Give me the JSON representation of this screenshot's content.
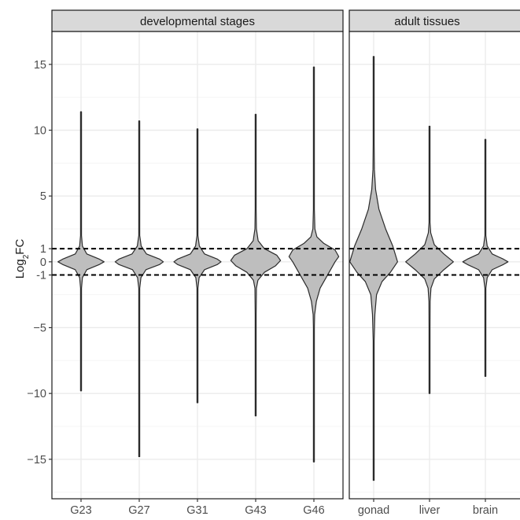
{
  "chart_data": {
    "type": "violin",
    "ylabel_main": "Log",
    "ylabel_sub": "2",
    "ylabel_tail": "FC",
    "y_ticks": [
      {
        "value": 15,
        "label": "15"
      },
      {
        "value": 10,
        "label": "10"
      },
      {
        "value": 5,
        "label": "5"
      },
      {
        "value": 1,
        "label": "1"
      },
      {
        "value": 0,
        "label": "0"
      },
      {
        "value": -1,
        "label": "-1"
      },
      {
        "value": -5,
        "label": "−5"
      },
      {
        "value": -10,
        "label": "−10"
      },
      {
        "value": -15,
        "label": "−15"
      }
    ],
    "ylim": [
      -18,
      17.5
    ],
    "hlines": [
      1,
      -1
    ],
    "grid": true,
    "colors": {
      "violin_fill": "#bebebe",
      "violin_stroke": "#2b2b2b",
      "strip_fill": "#d9d9d9",
      "panel_border": "#1a1a1a",
      "grid_major": "#ebebeb",
      "grid_minor": "#f5f5f5",
      "text": "#4d4d4d"
    },
    "panels": [
      {
        "strip": "developmental stages",
        "categories": [
          {
            "label": "G23",
            "min": -9.8,
            "max": 11.4,
            "width_profile": [
              [
                -9.8,
                0.004
              ],
              [
                -4,
                0.006
              ],
              [
                -2,
                0.02
              ],
              [
                -1.2,
                0.06
              ],
              [
                -0.6,
                0.25
              ],
              [
                -0.2,
                0.8
              ],
              [
                0,
                1.0
              ],
              [
                0.2,
                0.8
              ],
              [
                0.6,
                0.25
              ],
              [
                1.2,
                0.06
              ],
              [
                2,
                0.02
              ],
              [
                4,
                0.006
              ],
              [
                11.4,
                0.004
              ]
            ],
            "scale": 0.88
          },
          {
            "label": "G27",
            "min": -14.8,
            "max": 10.7,
            "width_profile": [
              [
                -14.8,
                0.004
              ],
              [
                -4,
                0.006
              ],
              [
                -2,
                0.02
              ],
              [
                -1.2,
                0.07
              ],
              [
                -0.6,
                0.28
              ],
              [
                -0.2,
                0.85
              ],
              [
                0,
                1.0
              ],
              [
                0.2,
                0.85
              ],
              [
                0.6,
                0.3
              ],
              [
                1.2,
                0.08
              ],
              [
                2,
                0.02
              ],
              [
                4,
                0.006
              ],
              [
                10.7,
                0.004
              ]
            ],
            "scale": 0.92
          },
          {
            "label": "G31",
            "min": -10.7,
            "max": 10.1,
            "width_profile": [
              [
                -10.7,
                0.004
              ],
              [
                -4,
                0.006
              ],
              [
                -2,
                0.02
              ],
              [
                -1.2,
                0.07
              ],
              [
                -0.6,
                0.3
              ],
              [
                -0.2,
                0.85
              ],
              [
                0,
                1.0
              ],
              [
                0.2,
                0.85
              ],
              [
                0.6,
                0.3
              ],
              [
                1.2,
                0.08
              ],
              [
                2,
                0.02
              ],
              [
                4,
                0.006
              ],
              [
                10.1,
                0.004
              ]
            ],
            "scale": 0.9
          },
          {
            "label": "G43",
            "min": -11.7,
            "max": 11.2,
            "width_profile": [
              [
                -11.7,
                0.004
              ],
              [
                -4,
                0.006
              ],
              [
                -2,
                0.03
              ],
              [
                -1.4,
                0.09
              ],
              [
                -0.8,
                0.35
              ],
              [
                -0.3,
                0.8
              ],
              [
                0.1,
                1.0
              ],
              [
                0.5,
                0.85
              ],
              [
                1,
                0.35
              ],
              [
                1.6,
                0.1
              ],
              [
                2.5,
                0.03
              ],
              [
                4,
                0.008
              ],
              [
                11.2,
                0.004
              ]
            ],
            "scale": 0.95
          },
          {
            "label": "G46",
            "min": -15.2,
            "max": 14.8,
            "width_profile": [
              [
                -15.2,
                0.004
              ],
              [
                -5,
                0.01
              ],
              [
                -4,
                0.03
              ],
              [
                -3,
                0.1
              ],
              [
                -2,
                0.25
              ],
              [
                -1,
                0.55
              ],
              [
                0,
                0.85
              ],
              [
                0.4,
                1.0
              ],
              [
                0.9,
                0.85
              ],
              [
                1.4,
                0.4
              ],
              [
                1.9,
                0.12
              ],
              [
                2.5,
                0.04
              ],
              [
                4,
                0.008
              ],
              [
                14.8,
                0.004
              ]
            ],
            "scale": 0.95
          }
        ]
      },
      {
        "strip": "adult tissues",
        "categories": [
          {
            "label": "gonad",
            "min": -16.6,
            "max": 15.6,
            "width_profile": [
              [
                -16.6,
                0.006
              ],
              [
                -9,
                0.01
              ],
              [
                -6,
                0.02
              ],
              [
                -4,
                0.05
              ],
              [
                -2.5,
                0.12
              ],
              [
                -1.5,
                0.35
              ],
              [
                -0.8,
                0.7
              ],
              [
                0,
                1.0
              ],
              [
                1.2,
                0.8
              ],
              [
                2.5,
                0.5
              ],
              [
                4,
                0.22
              ],
              [
                5.5,
                0.08
              ],
              [
                7,
                0.03
              ],
              [
                9,
                0.012
              ],
              [
                15.6,
                0.004
              ]
            ],
            "scale": 0.95
          },
          {
            "label": "liver",
            "min": -10,
            "max": 10.3,
            "width_profile": [
              [
                -10,
                0.004
              ],
              [
                -5,
                0.008
              ],
              [
                -3,
                0.025
              ],
              [
                -2,
                0.06
              ],
              [
                -1.3,
                0.2
              ],
              [
                -0.6,
                0.6
              ],
              [
                0,
                1.0
              ],
              [
                0.6,
                0.6
              ],
              [
                1.3,
                0.2
              ],
              [
                2.2,
                0.05
              ],
              [
                3,
                0.02
              ],
              [
                5,
                0.008
              ],
              [
                10.3,
                0.004
              ]
            ],
            "scale": 0.95
          },
          {
            "label": "brain",
            "min": -8.7,
            "max": 9.3,
            "width_profile": [
              [
                -8.7,
                0.004
              ],
              [
                -4,
                0.006
              ],
              [
                -2,
                0.02
              ],
              [
                -1.2,
                0.08
              ],
              [
                -0.6,
                0.3
              ],
              [
                -0.2,
                0.8
              ],
              [
                0,
                1.0
              ],
              [
                0.2,
                0.8
              ],
              [
                0.6,
                0.3
              ],
              [
                1.2,
                0.08
              ],
              [
                2,
                0.02
              ],
              [
                4,
                0.006
              ],
              [
                9.3,
                0.004
              ]
            ],
            "scale": 0.9
          }
        ]
      }
    ]
  }
}
